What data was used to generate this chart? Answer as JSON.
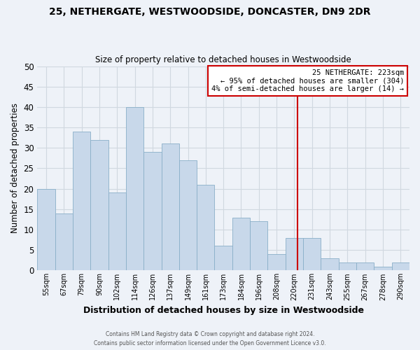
{
  "title": "25, NETHERGATE, WESTWOODSIDE, DONCASTER, DN9 2DR",
  "subtitle": "Size of property relative to detached houses in Westwoodside",
  "xlabel": "Distribution of detached houses by size in Westwoodside",
  "ylabel": "Number of detached properties",
  "footer_line1": "Contains HM Land Registry data © Crown copyright and database right 2024.",
  "footer_line2": "Contains public sector information licensed under the Open Government Licence v3.0.",
  "bin_labels": [
    "55sqm",
    "67sqm",
    "79sqm",
    "90sqm",
    "102sqm",
    "114sqm",
    "126sqm",
    "137sqm",
    "149sqm",
    "161sqm",
    "173sqm",
    "184sqm",
    "196sqm",
    "208sqm",
    "220sqm",
    "231sqm",
    "243sqm",
    "255sqm",
    "267sqm",
    "278sqm",
    "290sqm"
  ],
  "bar_heights": [
    20,
    14,
    34,
    32,
    19,
    40,
    29,
    31,
    27,
    21,
    6,
    13,
    12,
    4,
    8,
    8,
    3,
    2,
    2,
    1,
    2
  ],
  "bar_color": "#c8d8ea",
  "bar_edge_color": "#89afc8",
  "vline_x": 14.7,
  "vline_color": "#cc0000",
  "ylim": [
    0,
    50
  ],
  "yticks": [
    0,
    5,
    10,
    15,
    20,
    25,
    30,
    35,
    40,
    45,
    50
  ],
  "annotation_title": "25 NETHERGATE: 223sqm",
  "annotation_line1": "← 95% of detached houses are smaller (304)",
  "annotation_line2": "4% of semi-detached houses are larger (14) →",
  "annotation_box_color": "#ffffff",
  "annotation_box_edge": "#cc0000",
  "grid_color": "#d0d8e0",
  "background_color": "#eef2f8"
}
